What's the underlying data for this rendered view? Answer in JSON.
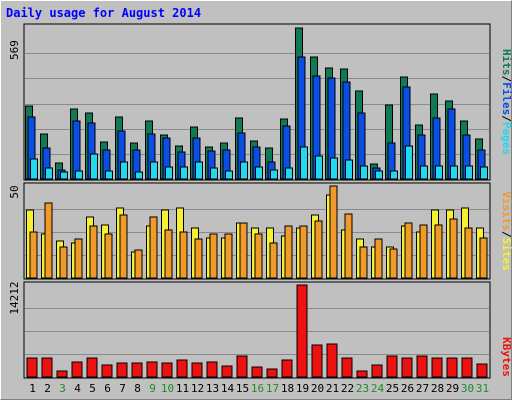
{
  "title": "Daily usage for August 2014",
  "colors": {
    "background": "#c0c0c0",
    "title": "#0000ff",
    "hits": "#117a55",
    "files": "#0a4ee6",
    "pages": "#22d8ec",
    "visits": "#f09a2a",
    "sites": "#f5f031",
    "kbytes": "#ee1111",
    "weekend_label": "#1e8c2c",
    "weekday_label": "#000000"
  },
  "labels": {
    "hits": "Hits",
    "files": "Files",
    "pages": "Pages",
    "visits": "Visits",
    "sites": "Sites",
    "kbytes": "KBytes",
    "slash": "/"
  },
  "scales": {
    "top_max": "569",
    "mid_max": "50",
    "bottom_max": "14212"
  },
  "chart_data": {
    "type": "bar",
    "title": "Daily usage for August 2014",
    "categories": [
      "1",
      "2",
      "3",
      "4",
      "5",
      "6",
      "7",
      "8",
      "9",
      "10",
      "11",
      "12",
      "13",
      "14",
      "15",
      "16",
      "17",
      "18",
      "19",
      "20",
      "21",
      "22",
      "23",
      "24",
      "25",
      "26",
      "27",
      "28",
      "29",
      "30",
      "31"
    ],
    "weekend_days": [
      "3",
      "9",
      "10",
      "16",
      "17",
      "23",
      "24",
      "30",
      "31"
    ],
    "panels": [
      {
        "name": "top",
        "ylim": [
          0,
          569
        ],
        "series": [
          {
            "name": "Hits",
            "values": [
              275,
              170,
              60,
              265,
              250,
              140,
              235,
              135,
              220,
              165,
              125,
              195,
              120,
              135,
              230,
              145,
              115,
              225,
              569,
              460,
              420,
              415,
              330,
              55,
              280,
              385,
              205,
              320,
              295,
              220,
              150
            ]
          },
          {
            "name": "Files",
            "values": [
              235,
              115,
              35,
              220,
              210,
              110,
              180,
              110,
              170,
              155,
              100,
              155,
              105,
              110,
              175,
              120,
              65,
              200,
              460,
              390,
              380,
              365,
              250,
              40,
              135,
              345,
              165,
              230,
              265,
              165,
              110
            ]
          },
          {
            "name": "Pages",
            "values": [
              75,
              40,
              28,
              30,
              95,
              30,
              65,
              25,
              65,
              45,
              45,
              65,
              40,
              30,
              65,
              45,
              35,
              40,
              120,
              85,
              80,
              70,
              50,
              30,
              30,
              125,
              50,
              50,
              50,
              50,
              45
            ]
          }
        ]
      },
      {
        "name": "middle",
        "ylim": [
          0,
          50
        ],
        "series": [
          {
            "name": "Visits",
            "values": [
              25,
              41,
              17,
              21,
              28,
              24,
              34,
              15,
              33,
              26,
              25,
              21,
              24,
              24,
              30,
              24,
              19,
              28,
              28,
              31,
              50,
              35,
              17,
              21,
              16,
              30,
              29,
              29,
              32,
              27,
              22
            ]
          },
          {
            "name": "Sites",
            "values": [
              37,
              24,
              20,
              19,
              33,
              29,
              38,
              14,
              28,
              37,
              38,
              27,
              22,
              22,
              30,
              27,
              27,
              23,
              27,
              34,
              45,
              26,
              21,
              17,
              17,
              28,
              25,
              37,
              37,
              38,
              27
            ]
          }
        ]
      },
      {
        "name": "bottom",
        "ylim": [
          0,
          14212
        ],
        "series": [
          {
            "name": "KBytes",
            "values": [
              3000,
              3000,
              1000,
              2300,
              3000,
              1800,
              2100,
              2100,
              2300,
              2100,
              2600,
              2200,
              2300,
              1700,
              3300,
              1500,
              1200,
              2600,
              14212,
              5000,
              5100,
              3000,
              1000,
              1900,
              3200,
              3000,
              3200,
              3000,
              3000,
              2900,
              2000
            ]
          }
        ]
      }
    ]
  }
}
